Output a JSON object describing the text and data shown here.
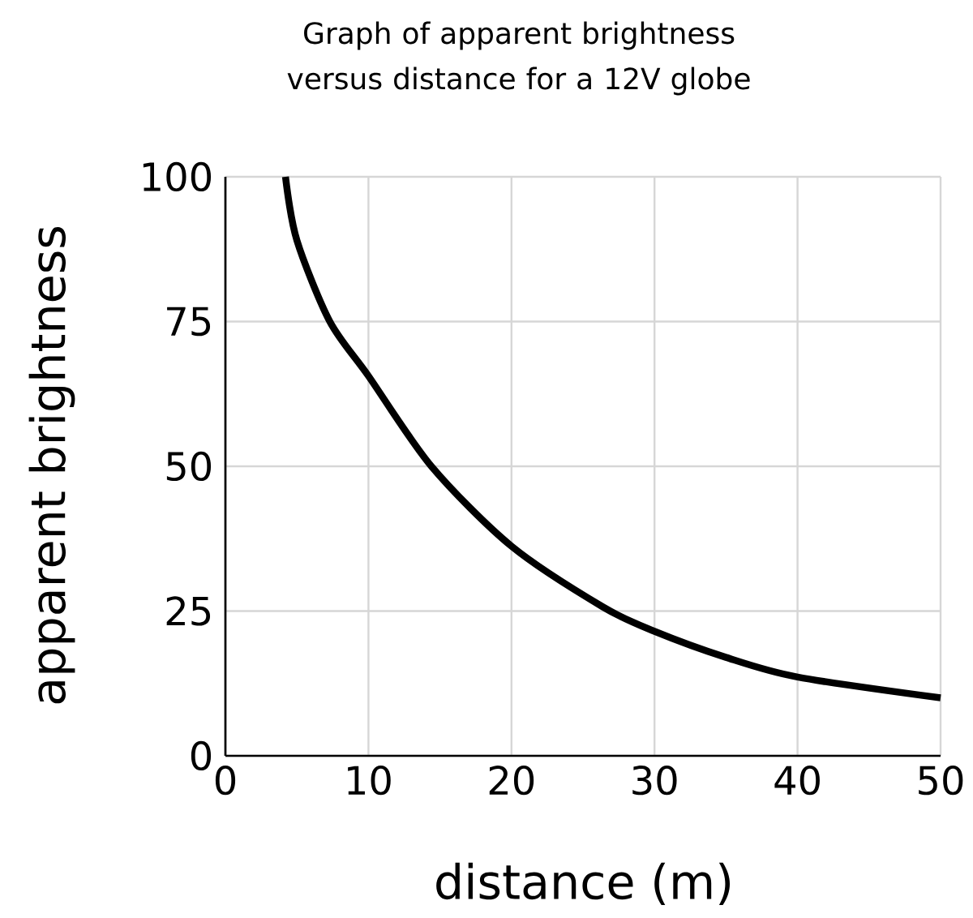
{
  "chart_data": {
    "type": "line",
    "title": "Graph of apparent brightness versus distance for a 12V globe",
    "xlabel": "distance (m)",
    "ylabel": "apparent brightness",
    "x": [
      4.2,
      5,
      7.3,
      10,
      14.4,
      20,
      26.4,
      30,
      35,
      40,
      50
    ],
    "series": [
      {
        "color": "#000000",
        "values": [
          100,
          89,
          75,
          65.6,
          50,
          36.2,
          25.7,
          21.5,
          17,
          13.6,
          10
        ]
      }
    ],
    "xlim": [
      0,
      50
    ],
    "ylim": [
      0,
      100
    ],
    "xticks": [
      0,
      10,
      20,
      30,
      40,
      50
    ],
    "yticks": [
      0,
      25,
      50,
      75,
      100
    ],
    "grid": true
  }
}
